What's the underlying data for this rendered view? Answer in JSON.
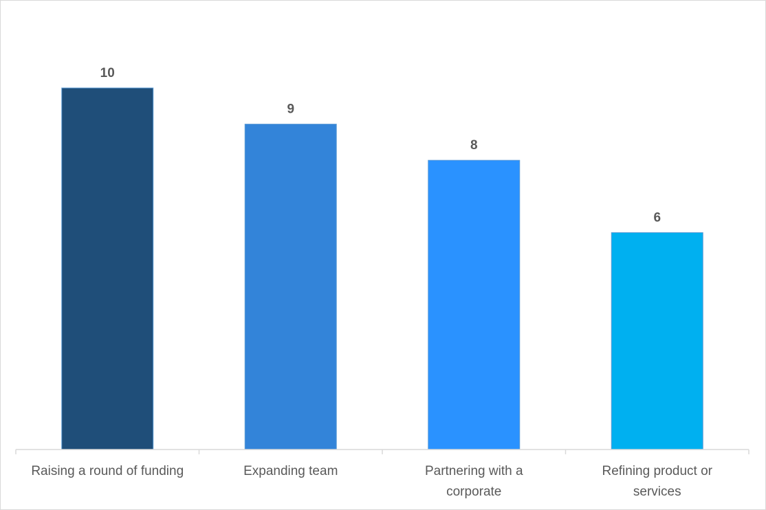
{
  "chart_data": {
    "type": "bar",
    "title": "",
    "xlabel": "",
    "ylabel": "",
    "categories": [
      [
        "Raising a round of funding"
      ],
      [
        "Expanding team"
      ],
      [
        "Partnering with a",
        "corporate"
      ],
      [
        "Refining product or",
        "services"
      ]
    ],
    "values": [
      10,
      9,
      8,
      6
    ],
    "data_labels": [
      "10",
      "9",
      "8",
      "6"
    ],
    "colors": [
      "#1f4e79",
      "#3384d9",
      "#2a92ff",
      "#00b0f0"
    ],
    "ylim": [
      0,
      10
    ],
    "grid": false,
    "legend": "none"
  }
}
